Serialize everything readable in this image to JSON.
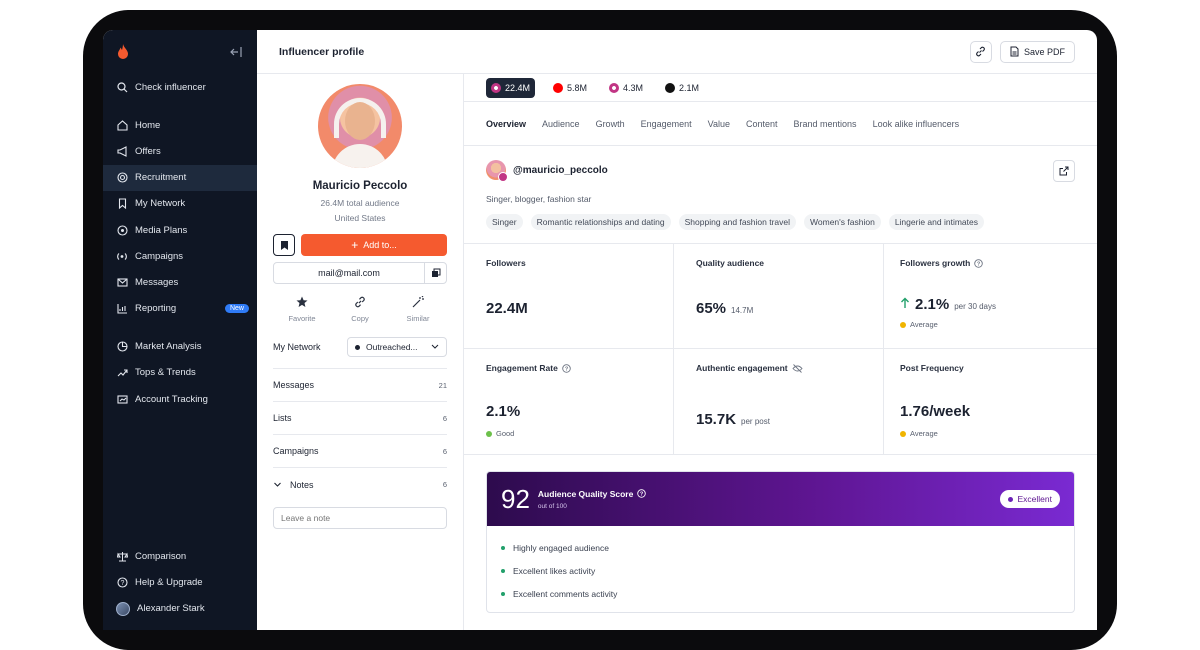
{
  "sidebar": {
    "check": "Check influencer",
    "items": [
      {
        "label": "Home",
        "icon": "home-icon"
      },
      {
        "label": "Offers",
        "icon": "megaphone-icon"
      },
      {
        "label": "Recruitment",
        "icon": "target-icon"
      },
      {
        "label": "My Network",
        "icon": "bookmark-icon"
      },
      {
        "label": "Media Plans",
        "icon": "bullseye-icon"
      },
      {
        "label": "Campaigns",
        "icon": "broadcast-icon"
      },
      {
        "label": "Messages",
        "icon": "mail-icon"
      },
      {
        "label": "Reporting",
        "icon": "chart-icon"
      }
    ],
    "new_badge": "New",
    "items2": [
      {
        "label": "Market Analysis",
        "icon": "analysis-icon"
      },
      {
        "label": "Tops & Trends",
        "icon": "trend-icon"
      },
      {
        "label": "Account Tracking",
        "icon": "tracking-icon"
      }
    ],
    "bottom": {
      "comparison": "Comparison",
      "help": "Help & Upgrade",
      "user": "Alexander Stark"
    }
  },
  "header": {
    "title": "Influencer profile",
    "save_pdf": "Save PDF"
  },
  "profile": {
    "name": "Mauricio Peccolo",
    "audience": "26.4M total audience",
    "country": "United States",
    "add_to": "Add to...",
    "email": "mail@mail.com",
    "quick": [
      {
        "label": "Favorite"
      },
      {
        "label": "Copy"
      },
      {
        "label": "Similar"
      }
    ],
    "my_network_label": "My Network",
    "my_network_value": "Outreached...",
    "rows": [
      {
        "label": "Messages",
        "count": "21"
      },
      {
        "label": "Lists",
        "count": "6"
      },
      {
        "label": "Campaigns",
        "count": "6"
      }
    ],
    "notes_label": "Notes",
    "notes_count": "6",
    "note_placeholder": "Leave a note"
  },
  "socials": [
    {
      "count": "22.4M",
      "icon": "instagram-icon",
      "color": "#c13584"
    },
    {
      "count": "5.8M",
      "icon": "youtube-icon",
      "color": "#ff0000"
    },
    {
      "count": "4.3M",
      "icon": "instagram-icon",
      "color": "#c13584"
    },
    {
      "count": "2.1M",
      "icon": "tiktok-icon",
      "color": "#111111"
    }
  ],
  "tabs": [
    "Overview",
    "Audience",
    "Growth",
    "Engagement",
    "Value",
    "Content",
    "Brand mentions",
    "Look alike influencers"
  ],
  "account": {
    "handle": "@mauricio_peccolo",
    "bio": "Singer, blogger, fashion star",
    "tags": [
      "Singer",
      "Romantic relationships and dating",
      "Shopping and fashion travel",
      "Women's fashion",
      "Lingerie and intimates"
    ]
  },
  "metrics": {
    "followers": {
      "label": "Followers",
      "value": "22.4M"
    },
    "quality": {
      "label": "Quality audience",
      "value": "65%",
      "extra": "14.7M"
    },
    "growth": {
      "label": "Followers growth",
      "value": "2.1%",
      "extra": "per 30 days",
      "status": "Average"
    },
    "engagement": {
      "label": "Engagement Rate",
      "value": "2.1%",
      "status": "Good"
    },
    "authentic": {
      "label": "Authentic engagement",
      "value": "15.7K",
      "extra": "per post"
    },
    "frequency": {
      "label": "Post Frequency",
      "value": "1.76/week",
      "status": "Average"
    }
  },
  "colors": {
    "accent": "#f55a2f",
    "good": "#22a06b",
    "average": "#f0b400",
    "green_dot": "#6cc04a",
    "purple": "#5e1591"
  },
  "quality_score": {
    "score": "92",
    "title": "Audience Quality Score",
    "sub": "out of 100",
    "badge": "Excellent",
    "items": [
      "Highly engaged audience",
      "Excellent likes activity",
      "Excellent comments activity"
    ]
  }
}
